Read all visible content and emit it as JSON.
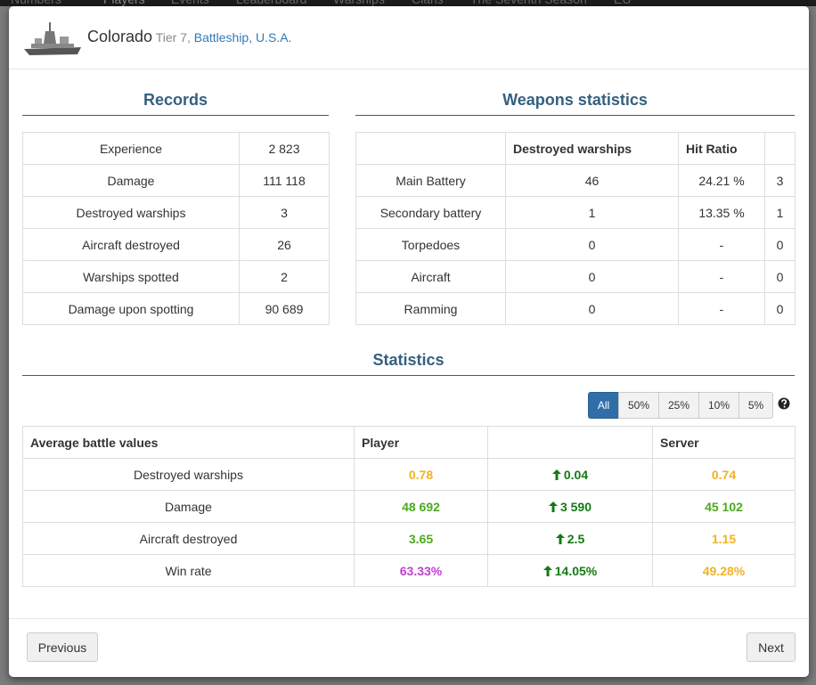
{
  "nav": [
    "Numbers",
    "Players",
    "Events",
    "Leaderboard",
    "Warships",
    "Clans",
    "The Seventh Season",
    "EU"
  ],
  "header": {
    "ship": "Colorado",
    "tier": "Tier 7,",
    "class": "Battleship, U.S.A."
  },
  "records": {
    "title": "Records",
    "rows": [
      [
        "Experience",
        "2 823"
      ],
      [
        "Damage",
        "111 118"
      ],
      [
        "Destroyed warships",
        "3"
      ],
      [
        "Aircraft destroyed",
        "26"
      ],
      [
        "Warships spotted",
        "2"
      ],
      [
        "Damage upon spotting",
        "90 689"
      ]
    ]
  },
  "weapons": {
    "title": "Weapons statistics",
    "columns": [
      "Destroyed warships",
      "Hit Ratio"
    ],
    "rows": [
      [
        "Main Battery",
        "46",
        "24.21 %",
        "3"
      ],
      [
        "Secondary battery",
        "1",
        "13.35 %",
        "1"
      ],
      [
        "Torpedoes",
        "0",
        "-",
        "0"
      ],
      [
        "Aircraft",
        "0",
        "-",
        "0"
      ],
      [
        "Ramming",
        "0",
        "-",
        "0"
      ]
    ]
  },
  "statistics": {
    "title": "Statistics",
    "filters": [
      "All",
      "50%",
      "25%",
      "10%",
      "5%"
    ],
    "active_filter": 0,
    "columns": [
      "Average battle values",
      "Player",
      "Server"
    ],
    "rows": [
      {
        "label": "Destroyed warships",
        "player": "0.78",
        "player_color": "#f0b323",
        "diff": "0.04",
        "server": "0.74",
        "server_color": "#f0b323"
      },
      {
        "label": "Damage",
        "player": "48 692",
        "player_color": "#4caa1e",
        "diff": "3 590",
        "server": "45 102",
        "server_color": "#4caa1e"
      },
      {
        "label": "Aircraft destroyed",
        "player": "3.65",
        "player_color": "#4caa1e",
        "diff": "2.5",
        "server": "1.15",
        "server_color": "#f0b323"
      },
      {
        "label": "Win rate",
        "player": "63.33%",
        "player_color": "#c03fd0",
        "diff": "14.05%",
        "server": "49.28%",
        "server_color": "#f0b323"
      }
    ],
    "diff_color": "#137a13"
  },
  "footer": {
    "previous": "Previous",
    "next": "Next"
  }
}
